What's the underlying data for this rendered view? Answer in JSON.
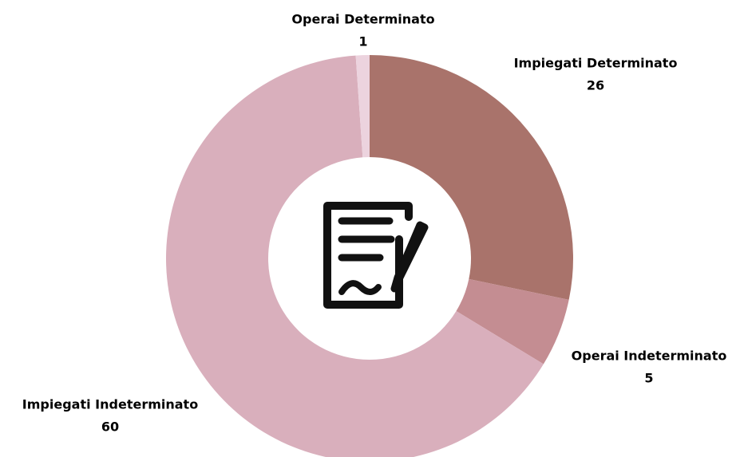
{
  "chart_data": {
    "type": "donut",
    "categories": [
      "Impiegati Determinato",
      "Operai Indeterminato",
      "Impiegati Indeterminato",
      "Operai Determinato"
    ],
    "values": [
      26,
      5,
      60,
      1
    ],
    "colors": [
      "#a9736b",
      "#c48d92",
      "#d9afbc",
      "#ecd3de"
    ]
  }
}
